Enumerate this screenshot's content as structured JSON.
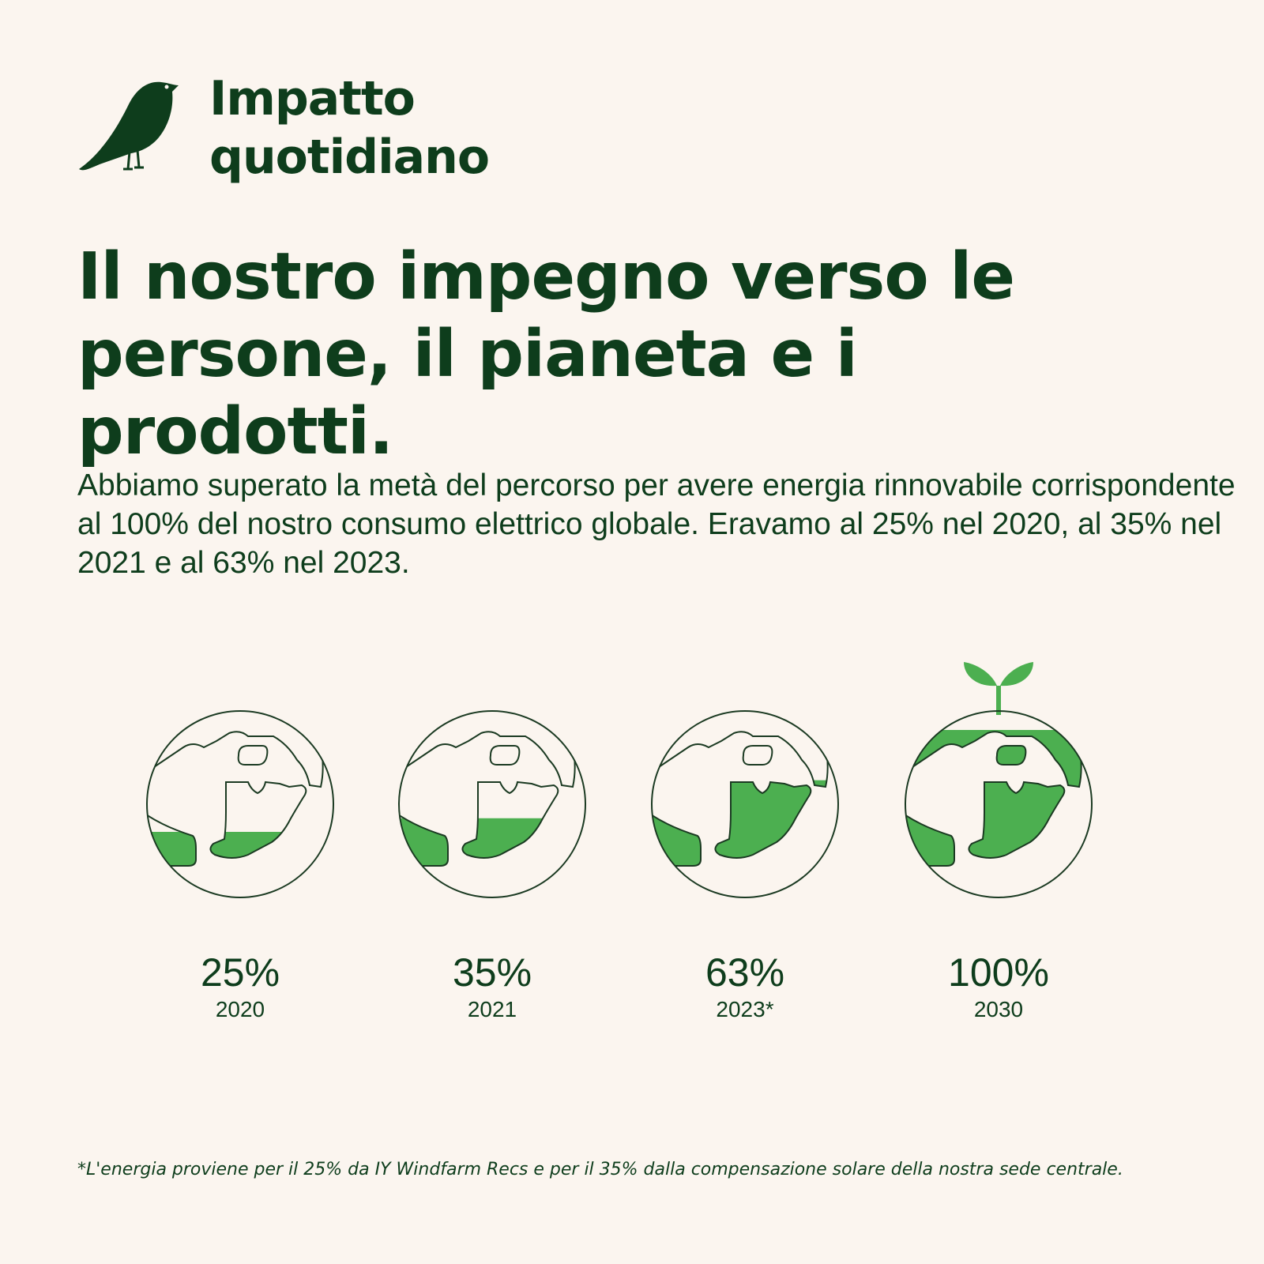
{
  "header": {
    "title": "Impatto quotidiano"
  },
  "headline": "Il nostro impegno verso le persone, il pianeta e i prodotti.",
  "body": "Abbiamo superato la metà del percorso per avere energia rinnovabile corrispondente al 100% del nostro consumo elettrico globale. Eravamo al 25% nel 2020, al 35% nel 2021 e al 63% nel 2023.",
  "items": [
    {
      "value": 25,
      "label": "25%",
      "year": "2020"
    },
    {
      "value": 35,
      "label": "35%",
      "year": "2021"
    },
    {
      "value": 63,
      "label": "63%",
      "year": "2023*"
    },
    {
      "value": 100,
      "label": "100%",
      "year": "2030"
    }
  ],
  "footnote": "*L'energia proviene per il 25% da IY Windfarm Recs e per il 35% dalla compensazione solare della nostra sede centrale."
}
